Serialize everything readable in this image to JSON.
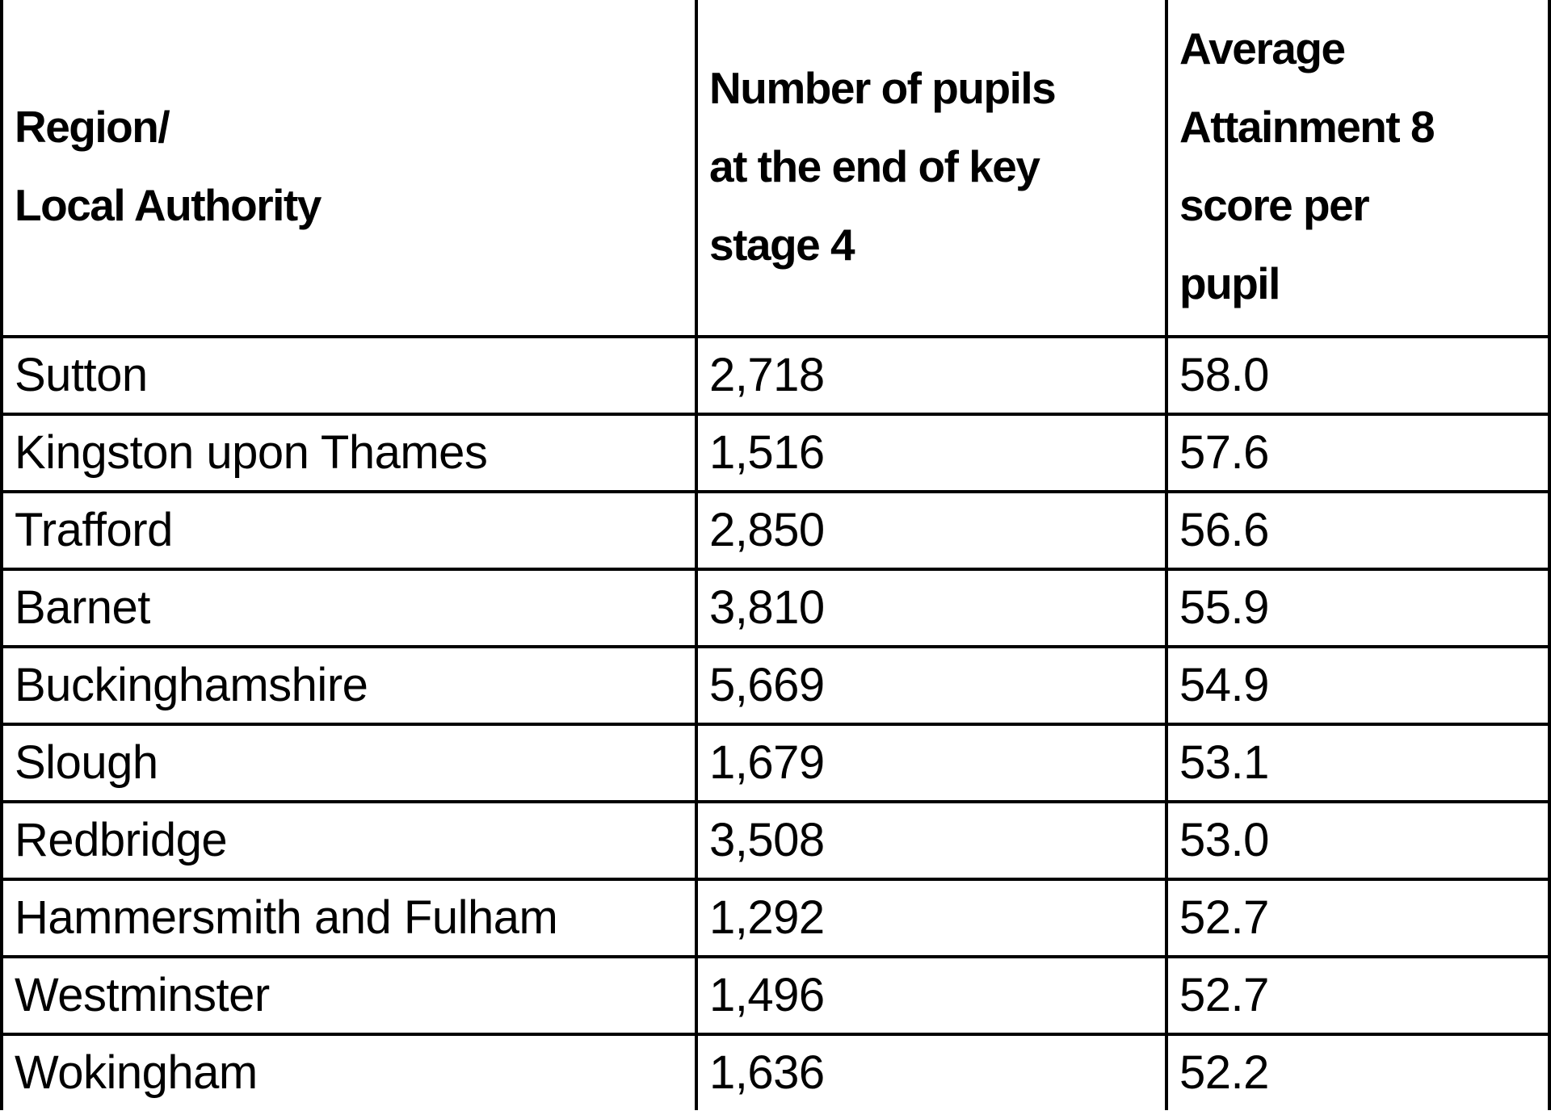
{
  "table": {
    "headers": [
      {
        "lines": [
          "Region/",
          "Local Authority"
        ]
      },
      {
        "lines": [
          "Number of pupils",
          "at the end of key",
          "stage 4"
        ]
      },
      {
        "lines": [
          "Average",
          "Attainment 8",
          "score per",
          "pupil"
        ]
      }
    ],
    "rows": [
      {
        "region": "Sutton",
        "pupils": "2,718",
        "score": "58.0"
      },
      {
        "region": "Kingston upon Thames",
        "pupils": "1,516",
        "score": "57.6"
      },
      {
        "region": "Trafford",
        "pupils": "2,850",
        "score": "56.6"
      },
      {
        "region": "Barnet",
        "pupils": "3,810",
        "score": "55.9"
      },
      {
        "region": "Buckinghamshire",
        "pupils": "5,669",
        "score": "54.9"
      },
      {
        "region": "Slough",
        "pupils": "1,679",
        "score": "53.1"
      },
      {
        "region": "Redbridge",
        "pupils": "3,508",
        "score": "53.0"
      },
      {
        "region": "Hammersmith and Fulham",
        "pupils": "1,292",
        "score": "52.7"
      },
      {
        "region": "Westminster",
        "pupils": "1,496",
        "score": "52.7"
      },
      {
        "region": "Wokingham",
        "pupils": "1,636",
        "score": "52.2"
      }
    ]
  },
  "colors": {
    "border": "#000000",
    "background": "#ffffff",
    "text": "#000000"
  }
}
